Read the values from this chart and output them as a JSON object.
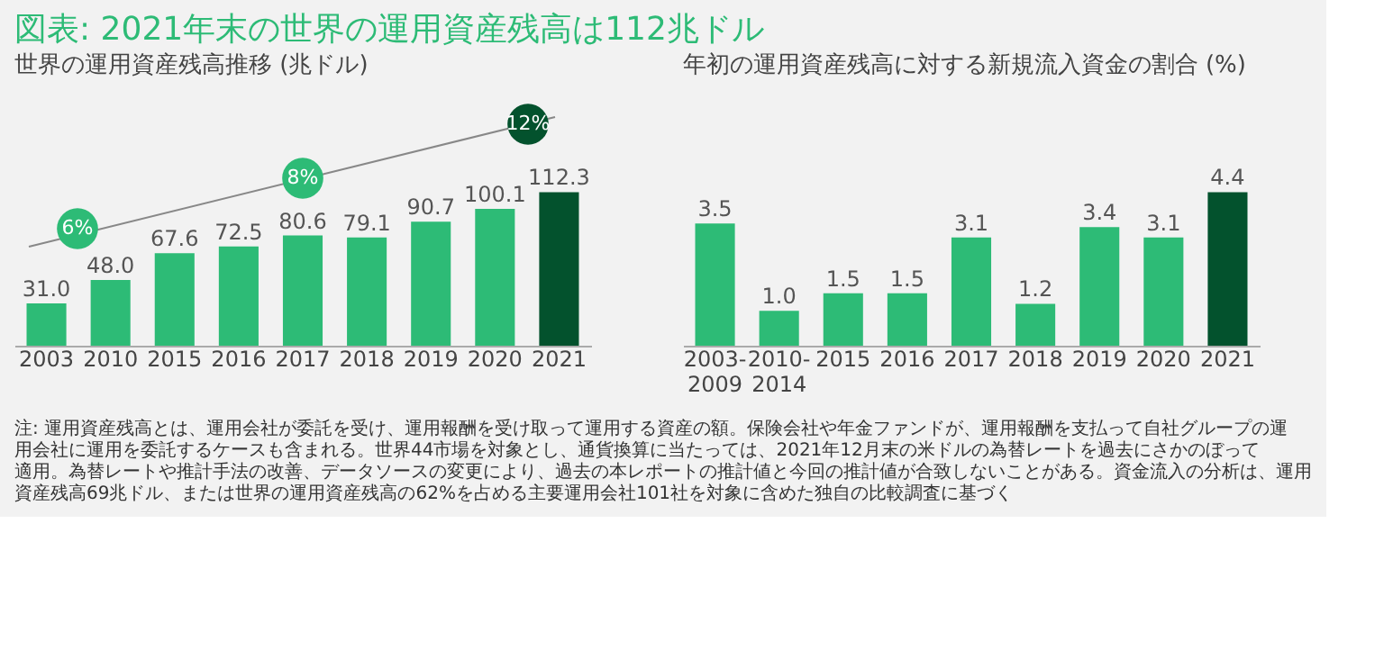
{
  "chart_data": [
    {
      "type": "bar",
      "title": "図表: 2021年末の世界の運用資産残高は112兆ドル",
      "subtitle": "世界の運用資産残高推移 (兆ドル)",
      "categories": [
        "2003",
        "2010",
        "2015",
        "2016",
        "2017",
        "2018",
        "2019",
        "2020",
        "2021"
      ],
      "values": [
        31.0,
        48.0,
        67.6,
        72.5,
        80.6,
        79.1,
        90.7,
        100.1,
        112.3
      ],
      "value_labels": [
        "31.0",
        "48.0",
        "67.6",
        "72.5",
        "80.6",
        "79.1",
        "90.7",
        "100.1",
        "112.3"
      ],
      "colors": [
        "#2dbb76",
        "#2dbb76",
        "#2dbb76",
        "#2dbb76",
        "#2dbb76",
        "#2dbb76",
        "#2dbb76",
        "#2dbb76",
        "#03522d"
      ],
      "grid": false,
      "annotations": [
        "6%",
        "8%",
        "12%",
        "注: 運用資産残高とは、運用会社が委託を受け、運用報酬を受け取って運用する資産の額。保険会社や年金ファンドが、運用報酬を支払って自社グループの運用会社に運用を委託するケースも含まれる。世界44市場を対象とし、通貨換算に当たっては、2021年12月末の米ドルの為替レートを過去にさかのぼって適用。為替レートや推計手法の改善、データソースの変更により、過去の本レポートの推計値と今回の推計値が合致しないことがある。資金流入の分析は、運用資産残高69兆ドル、または世界の運用資産残高の62%を占める主要運用会社101社を対象に含めた独自の比較調査に基づく"
      ]
    },
    {
      "type": "bar",
      "title": "年初の運用資産残高に対する新規流入資金の割合 (%)",
      "categories": [
        "2003-2009",
        "2010-2014",
        "2015",
        "2016",
        "2017",
        "2018",
        "2019",
        "2020",
        "2021"
      ],
      "values": [
        3.5,
        1.0,
        1.5,
        1.5,
        3.1,
        1.2,
        3.4,
        3.1,
        4.4
      ],
      "value_labels": [
        "3.5",
        "1.0",
        "1.5",
        "1.5",
        "3.1",
        "1.2",
        "3.4",
        "3.1",
        "4.4"
      ],
      "colors": [
        "#2dbb76",
        "#2dbb76",
        "#2dbb76",
        "#2dbb76",
        "#2dbb76",
        "#2dbb76",
        "#2dbb76",
        "#2dbb76",
        "#03522d"
      ],
      "grid": false
    }
  ]
}
